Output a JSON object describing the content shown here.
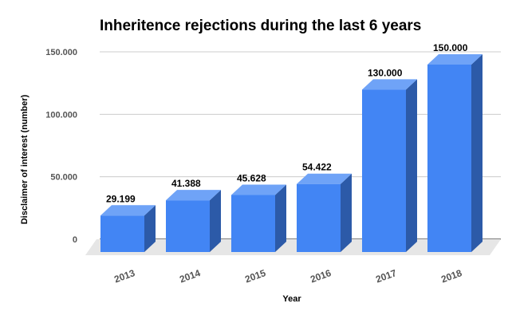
{
  "chart_data": {
    "type": "bar",
    "title": "Inheritence rejections during the last 6 years",
    "xlabel": "Year",
    "ylabel": "Disclaimer of interest (number)",
    "categories": [
      "2013",
      "2014",
      "2015",
      "2016",
      "2017",
      "2018"
    ],
    "values": [
      29199,
      41388,
      45628,
      54422,
      130000,
      150000
    ],
    "value_labels": [
      "29.199",
      "41.388",
      "45.628",
      "54.422",
      "130.000",
      "150.000"
    ],
    "ylim": [
      0,
      150000
    ],
    "yticks": [
      0,
      50000,
      100000,
      150000
    ],
    "ytick_labels": [
      "0",
      "50.000",
      "100.000",
      "150.000"
    ],
    "grid": true,
    "legend": "none",
    "style": "3d-column",
    "colors": {
      "front": "#4285f4",
      "top": "#6fa3f7",
      "side": "#2c5aa8",
      "grid": "#cccccc",
      "floor": "#e6e6e6"
    }
  }
}
